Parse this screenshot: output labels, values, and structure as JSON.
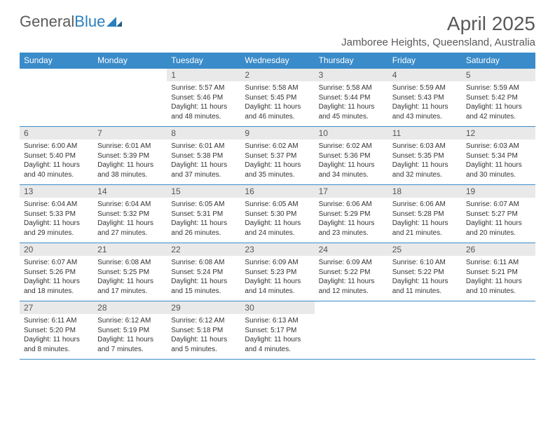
{
  "logo": {
    "part1": "General",
    "part2": "Blue"
  },
  "title": "April 2025",
  "location": "Jamboree Heights, Queensland, Australia",
  "colors": {
    "header_bg": "#3a8bc9",
    "header_fg": "#ffffff",
    "daynum_bg": "#e9e9e9",
    "rule": "#3a8bc9",
    "logo_gray": "#5a5a5a",
    "logo_blue": "#2a7fbf"
  },
  "weekdays": [
    "Sunday",
    "Monday",
    "Tuesday",
    "Wednesday",
    "Thursday",
    "Friday",
    "Saturday"
  ],
  "first_weekday_index": 2,
  "days": [
    {
      "n": 1,
      "sunrise": "5:57 AM",
      "sunset": "5:46 PM",
      "daylight": "11 hours and 48 minutes."
    },
    {
      "n": 2,
      "sunrise": "5:58 AM",
      "sunset": "5:45 PM",
      "daylight": "11 hours and 46 minutes."
    },
    {
      "n": 3,
      "sunrise": "5:58 AM",
      "sunset": "5:44 PM",
      "daylight": "11 hours and 45 minutes."
    },
    {
      "n": 4,
      "sunrise": "5:59 AM",
      "sunset": "5:43 PM",
      "daylight": "11 hours and 43 minutes."
    },
    {
      "n": 5,
      "sunrise": "5:59 AM",
      "sunset": "5:42 PM",
      "daylight": "11 hours and 42 minutes."
    },
    {
      "n": 6,
      "sunrise": "6:00 AM",
      "sunset": "5:40 PM",
      "daylight": "11 hours and 40 minutes."
    },
    {
      "n": 7,
      "sunrise": "6:01 AM",
      "sunset": "5:39 PM",
      "daylight": "11 hours and 38 minutes."
    },
    {
      "n": 8,
      "sunrise": "6:01 AM",
      "sunset": "5:38 PM",
      "daylight": "11 hours and 37 minutes."
    },
    {
      "n": 9,
      "sunrise": "6:02 AM",
      "sunset": "5:37 PM",
      "daylight": "11 hours and 35 minutes."
    },
    {
      "n": 10,
      "sunrise": "6:02 AM",
      "sunset": "5:36 PM",
      "daylight": "11 hours and 34 minutes."
    },
    {
      "n": 11,
      "sunrise": "6:03 AM",
      "sunset": "5:35 PM",
      "daylight": "11 hours and 32 minutes."
    },
    {
      "n": 12,
      "sunrise": "6:03 AM",
      "sunset": "5:34 PM",
      "daylight": "11 hours and 30 minutes."
    },
    {
      "n": 13,
      "sunrise": "6:04 AM",
      "sunset": "5:33 PM",
      "daylight": "11 hours and 29 minutes."
    },
    {
      "n": 14,
      "sunrise": "6:04 AM",
      "sunset": "5:32 PM",
      "daylight": "11 hours and 27 minutes."
    },
    {
      "n": 15,
      "sunrise": "6:05 AM",
      "sunset": "5:31 PM",
      "daylight": "11 hours and 26 minutes."
    },
    {
      "n": 16,
      "sunrise": "6:05 AM",
      "sunset": "5:30 PM",
      "daylight": "11 hours and 24 minutes."
    },
    {
      "n": 17,
      "sunrise": "6:06 AM",
      "sunset": "5:29 PM",
      "daylight": "11 hours and 23 minutes."
    },
    {
      "n": 18,
      "sunrise": "6:06 AM",
      "sunset": "5:28 PM",
      "daylight": "11 hours and 21 minutes."
    },
    {
      "n": 19,
      "sunrise": "6:07 AM",
      "sunset": "5:27 PM",
      "daylight": "11 hours and 20 minutes."
    },
    {
      "n": 20,
      "sunrise": "6:07 AM",
      "sunset": "5:26 PM",
      "daylight": "11 hours and 18 minutes."
    },
    {
      "n": 21,
      "sunrise": "6:08 AM",
      "sunset": "5:25 PM",
      "daylight": "11 hours and 17 minutes."
    },
    {
      "n": 22,
      "sunrise": "6:08 AM",
      "sunset": "5:24 PM",
      "daylight": "11 hours and 15 minutes."
    },
    {
      "n": 23,
      "sunrise": "6:09 AM",
      "sunset": "5:23 PM",
      "daylight": "11 hours and 14 minutes."
    },
    {
      "n": 24,
      "sunrise": "6:09 AM",
      "sunset": "5:22 PM",
      "daylight": "11 hours and 12 minutes."
    },
    {
      "n": 25,
      "sunrise": "6:10 AM",
      "sunset": "5:22 PM",
      "daylight": "11 hours and 11 minutes."
    },
    {
      "n": 26,
      "sunrise": "6:11 AM",
      "sunset": "5:21 PM",
      "daylight": "11 hours and 10 minutes."
    },
    {
      "n": 27,
      "sunrise": "6:11 AM",
      "sunset": "5:20 PM",
      "daylight": "11 hours and 8 minutes."
    },
    {
      "n": 28,
      "sunrise": "6:12 AM",
      "sunset": "5:19 PM",
      "daylight": "11 hours and 7 minutes."
    },
    {
      "n": 29,
      "sunrise": "6:12 AM",
      "sunset": "5:18 PM",
      "daylight": "11 hours and 5 minutes."
    },
    {
      "n": 30,
      "sunrise": "6:13 AM",
      "sunset": "5:17 PM",
      "daylight": "11 hours and 4 minutes."
    }
  ],
  "labels": {
    "sunrise": "Sunrise:",
    "sunset": "Sunset:",
    "daylight": "Daylight:"
  }
}
